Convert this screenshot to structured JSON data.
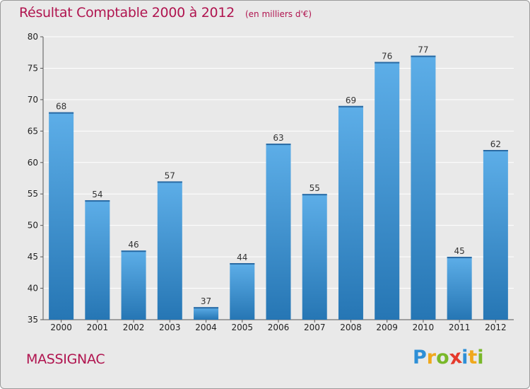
{
  "chart_data": {
    "type": "bar",
    "title": "Résultat Comptable 2000 à 2012",
    "subtitle": "(en milliers d'€)",
    "categories": [
      "2000",
      "2001",
      "2002",
      "2003",
      "2004",
      "2005",
      "2006",
      "2007",
      "2008",
      "2009",
      "2010",
      "2011",
      "2012"
    ],
    "values": [
      68,
      54,
      46,
      57,
      37,
      44,
      63,
      55,
      69,
      76,
      77,
      45,
      62
    ],
    "yticks": [
      35,
      40,
      45,
      50,
      55,
      60,
      65,
      70,
      75,
      80
    ],
    "ylim": [
      35,
      80
    ],
    "xlabel": "",
    "ylabel": "",
    "grid": true
  },
  "commune": "MASSIGNAC",
  "logo": {
    "letters": [
      "P",
      "r",
      "o",
      "x",
      "i",
      "t",
      "i"
    ],
    "colors": [
      "#2e8fd6",
      "#f0a81c",
      "#79b829",
      "#e53a2c",
      "#2e8fd6",
      "#f0a81c",
      "#79b829"
    ]
  },
  "colors": {
    "title": "#b0144f",
    "bar_top": "#5daee8",
    "bar_bottom": "#2676b4",
    "background": "#e9e9e9",
    "grid": "#ffffff"
  }
}
